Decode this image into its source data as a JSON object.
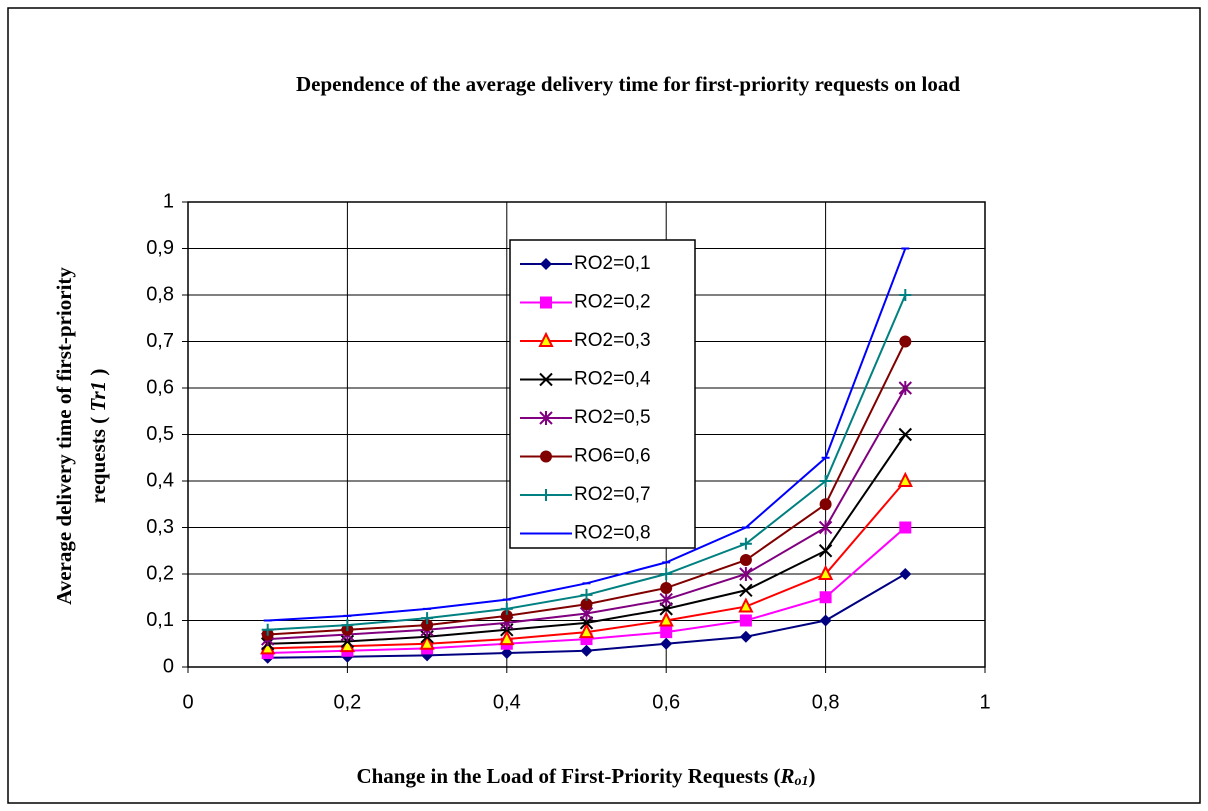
{
  "chart_data": {
    "type": "line",
    "title": "Dependence of the average delivery time for first-priority requests on load",
    "x_label": [
      "Change in the Load of First-Priority Requests (",
      "R",
      "o1",
      ")"
    ],
    "y_label": {
      "line1": "Average delivery time of first-priority",
      "line2": [
        "requests ( ",
        "Tr1",
        " )"
      ]
    },
    "x": [
      0.1,
      0.2,
      0.3,
      0.4,
      0.5,
      0.6,
      0.7,
      0.8,
      0.9
    ],
    "series": [
      {
        "name": "RO2=0,1",
        "color": "#000080",
        "marker": "diamond",
        "values": [
          0.02,
          0.022,
          0.025,
          0.03,
          0.035,
          0.05,
          0.065,
          0.1,
          0.2
        ]
      },
      {
        "name": "RO2=0,2",
        "color": "#ff00ff",
        "marker": "square",
        "values": [
          0.03,
          0.035,
          0.04,
          0.05,
          0.06,
          0.075,
          0.1,
          0.15,
          0.3
        ]
      },
      {
        "name": "RO2=0,3",
        "color": "#ff0000",
        "marker": "triangle",
        "values": [
          0.04,
          0.045,
          0.05,
          0.06,
          0.075,
          0.1,
          0.13,
          0.2,
          0.4
        ]
      },
      {
        "name": "RO2=0,4",
        "color": "#000000",
        "marker": "x",
        "values": [
          0.05,
          0.055,
          0.065,
          0.08,
          0.095,
          0.125,
          0.165,
          0.25,
          0.5
        ]
      },
      {
        "name": "RO2=0,5",
        "color": "#800080",
        "marker": "star",
        "values": [
          0.06,
          0.07,
          0.08,
          0.095,
          0.115,
          0.145,
          0.2,
          0.3,
          0.6
        ]
      },
      {
        "name": "RO6=0,6",
        "color": "#800000",
        "marker": "circle",
        "values": [
          0.07,
          0.08,
          0.09,
          0.11,
          0.135,
          0.17,
          0.23,
          0.35,
          0.7
        ]
      },
      {
        "name": "RO2=0,7",
        "color": "#008080",
        "marker": "plus",
        "values": [
          0.08,
          0.09,
          0.105,
          0.125,
          0.155,
          0.2,
          0.265,
          0.4,
          0.8
        ]
      },
      {
        "name": "RO2=0,8",
        "color": "#0000ff",
        "marker": "dash",
        "values": [
          0.1,
          0.11,
          0.125,
          0.145,
          0.18,
          0.225,
          0.3,
          0.45,
          0.9
        ]
      }
    ],
    "xlim": [
      0,
      1
    ],
    "xticks": [
      0,
      {
        "value": 0.2,
        "label": "0,2"
      },
      {
        "value": 0.4,
        "label": "0,4"
      },
      {
        "value": 0.6,
        "label": "0,6"
      },
      {
        "value": 0.8,
        "label": "0,8"
      },
      1
    ],
    "ylim": [
      0,
      1
    ],
    "yticks": [
      0,
      {
        "value": 0.1,
        "label": "0,1"
      },
      {
        "value": 0.2,
        "label": "0,2"
      },
      {
        "value": 0.3,
        "label": "0,3"
      },
      {
        "value": 0.4,
        "label": "0,4"
      },
      {
        "value": 0.5,
        "label": "0,5"
      },
      {
        "value": 0.6,
        "label": "0,6"
      },
      {
        "value": 0.7,
        "label": "0,7"
      },
      {
        "value": 0.8,
        "label": "0,8"
      },
      {
        "value": 0.9,
        "label": "0,9"
      },
      1
    ],
    "grid": true
  }
}
